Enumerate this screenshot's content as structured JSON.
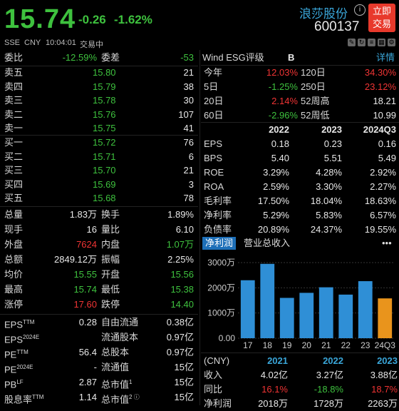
{
  "quote": {
    "price": "15.74",
    "change": "-0.26",
    "change_pct": "-1.62%",
    "name": "浪莎股份",
    "code": "600137",
    "trade_button": [
      "立即",
      "交易"
    ],
    "info_icon": "i"
  },
  "subheader": [
    "SSE",
    "CNY",
    "10:04:01",
    "交易中"
  ],
  "subheader_icons": [
    "edit-icon",
    "refresh-icon",
    "list-icon",
    "grid-icon",
    "settings-icon"
  ],
  "ratio": {
    "label1": "委比",
    "val1": "-12.59%",
    "label2": "委差",
    "val2": "-53"
  },
  "asks": [
    {
      "label": "卖五",
      "price": "15.80",
      "vol": "21"
    },
    {
      "label": "卖四",
      "price": "15.79",
      "vol": "38"
    },
    {
      "label": "卖三",
      "price": "15.78",
      "vol": "30"
    },
    {
      "label": "卖二",
      "price": "15.76",
      "vol": "107"
    },
    {
      "label": "卖一",
      "price": "15.75",
      "vol": "41"
    }
  ],
  "bids": [
    {
      "label": "买一",
      "price": "15.72",
      "vol": "76"
    },
    {
      "label": "买二",
      "price": "15.71",
      "vol": "6"
    },
    {
      "label": "买三",
      "price": "15.70",
      "vol": "21"
    },
    {
      "label": "买四",
      "price": "15.69",
      "vol": "3"
    },
    {
      "label": "买五",
      "price": "15.68",
      "vol": "78"
    }
  ],
  "stats": [
    {
      "l1": "总量",
      "v1": "1.83万",
      "c1": "white",
      "l2": "换手",
      "v2": "1.89%",
      "c2": "white"
    },
    {
      "l1": "现手",
      "v1": "16",
      "c1": "white",
      "l2": "量比",
      "v2": "6.10",
      "c2": "white"
    },
    {
      "l1": "外盘",
      "v1": "7624",
      "c1": "red",
      "l2": "内盘",
      "v2": "1.07万",
      "c2": "green"
    },
    {
      "l1": "总额",
      "v1": "2849.12万",
      "c1": "white",
      "l2": "振幅",
      "v2": "2.25%",
      "c2": "white"
    },
    {
      "l1": "均价",
      "v1": "15.55",
      "c1": "green",
      "l2": "开盘",
      "v2": "15.56",
      "c2": "green"
    },
    {
      "l1": "最高",
      "v1": "15.74",
      "c1": "green",
      "l2": "最低",
      "v2": "15.38",
      "c2": "green"
    },
    {
      "l1": "涨停",
      "v1": "17.60",
      "c1": "red",
      "l2": "跌停",
      "v2": "14.40",
      "c2": "green"
    }
  ],
  "fundamentals": [
    {
      "l1": "EPS",
      "s1": "TTM",
      "v1": "0.28",
      "l2": "自由流通",
      "s2": "",
      "v2": "0.38亿"
    },
    {
      "l1": "EPS",
      "s1": "2024E",
      "v1": "",
      "l2": "流通股本",
      "s2": "",
      "v2": "0.97亿"
    },
    {
      "l1": "PE",
      "s1": "TTM",
      "v1": "56.4",
      "l2": "总股本",
      "s2": "",
      "v2": "0.97亿"
    },
    {
      "l1": "PE",
      "s1": "2024E",
      "v1": "-",
      "l2": "流通值",
      "s2": "",
      "v2": "15亿"
    },
    {
      "l1": "PB",
      "s1": "LF",
      "v1": "2.87",
      "l2": "总市值",
      "s2": "1",
      "v2": "15亿"
    },
    {
      "l1": "股息率",
      "s1": "TTM",
      "v1": "1.14",
      "l2": "总市值",
      "s2": "2 ⓘ",
      "v2": "15亿"
    }
  ],
  "esg": {
    "label": "Wind ESG评级",
    "grade": "B",
    "detail": "详情"
  },
  "performance": [
    {
      "l1": "今年",
      "v1": "12.03%",
      "c1": "red",
      "l2": "120日",
      "v2": "34.30%",
      "c2": "red"
    },
    {
      "l1": "5日",
      "v1": "-1.25%",
      "c1": "green",
      "l2": "250日",
      "v2": "23.12%",
      "c2": "red"
    },
    {
      "l1": "20日",
      "v1": "2.14%",
      "c1": "red",
      "l2": "52周高",
      "v2": "18.21",
      "c2": "white"
    },
    {
      "l1": "60日",
      "v1": "-2.96%",
      "c1": "green",
      "l2": "52周低",
      "v2": "10.99",
      "c2": "white"
    }
  ],
  "financial": {
    "headers": [
      "",
      "2022",
      "2023",
      "2024Q3"
    ],
    "rows": [
      [
        "EPS",
        "0.18",
        "0.23",
        "0.16"
      ],
      [
        "BPS",
        "5.40",
        "5.51",
        "5.49"
      ],
      [
        "ROE",
        "3.29%",
        "4.28%",
        "2.92%"
      ],
      [
        "ROA",
        "2.59%",
        "3.30%",
        "2.27%"
      ],
      [
        "毛利率",
        "17.50%",
        "18.04%",
        "18.63%"
      ],
      [
        "净利率",
        "5.29%",
        "5.83%",
        "6.57%"
      ],
      [
        "负债率",
        "20.89%",
        "24.37%",
        "19.55%"
      ]
    ]
  },
  "tabs": {
    "active": "净利润",
    "other": "营业总收入",
    "more": "•••"
  },
  "chart_data": {
    "type": "bar",
    "categories": [
      "17",
      "18",
      "19",
      "20",
      "21",
      "22",
      "23",
      "24Q3"
    ],
    "values": [
      2300,
      2950,
      1600,
      1800,
      2020,
      1730,
      2263,
      1580
    ],
    "ylim": [
      0,
      3000
    ],
    "ytick_labels": [
      "3000万",
      "2000万",
      "1000万",
      "0.00"
    ],
    "yticks": [
      3000,
      2000,
      1000,
      0
    ],
    "colors": {
      "normal": "#2f8fd6",
      "last": "#e9941c"
    }
  },
  "revenue_table": {
    "headers": [
      "(CNY)",
      "2021",
      "2022",
      "2023"
    ],
    "rows": [
      {
        "label": "收入",
        "vals": [
          "4.02亿",
          "3.27亿",
          "3.88亿"
        ],
        "colors": [
          "white",
          "white",
          "white"
        ]
      },
      {
        "label": "同比",
        "vals": [
          "16.1%",
          "-18.8%",
          "18.7%"
        ],
        "colors": [
          "red",
          "green",
          "red"
        ]
      },
      {
        "label": "净利润",
        "vals": [
          "2018万",
          "1728万",
          "2263万"
        ],
        "colors": [
          "white",
          "white",
          "white"
        ]
      }
    ]
  }
}
